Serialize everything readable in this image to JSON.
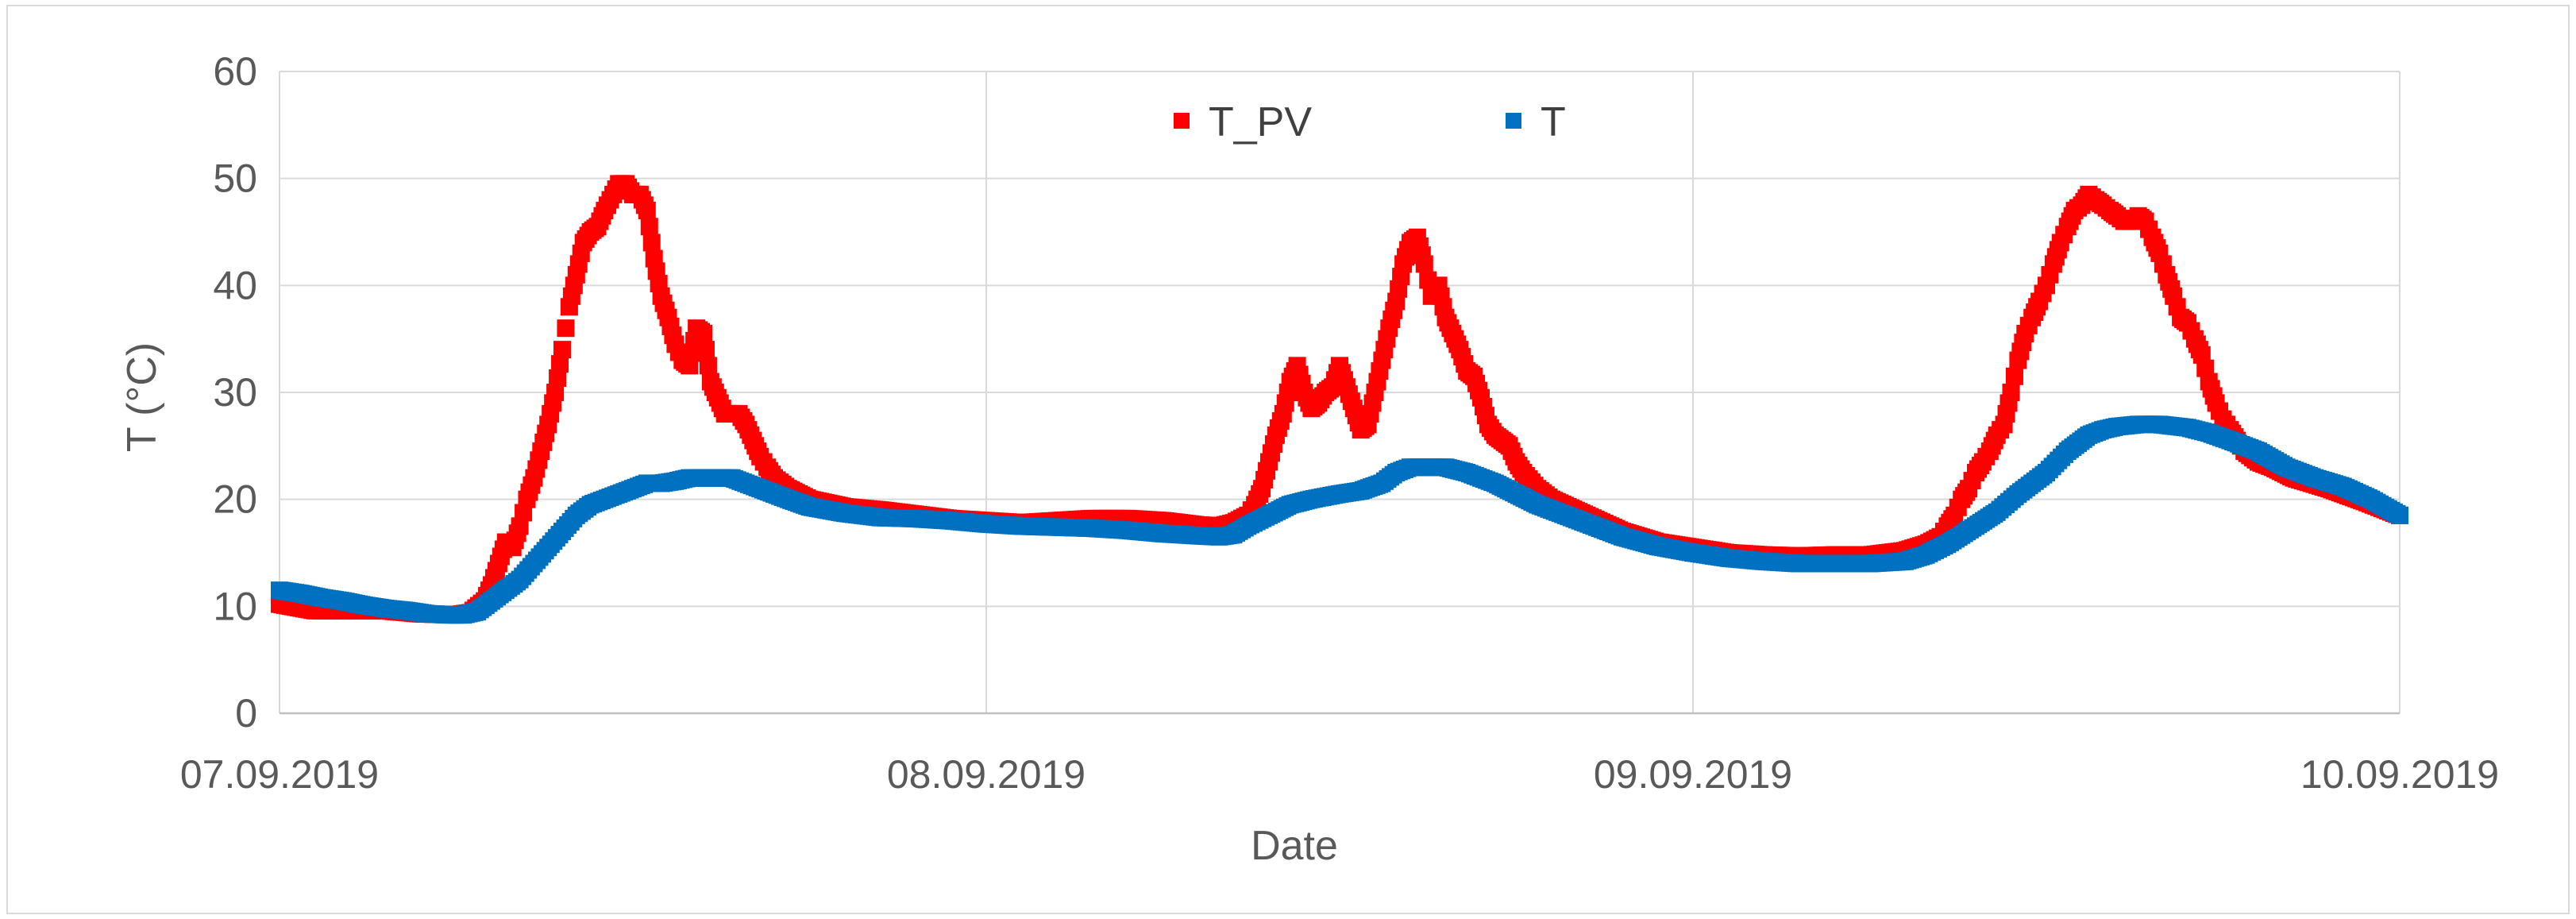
{
  "chart_data": {
    "type": "scatter",
    "title": "",
    "xlabel": "Date",
    "ylabel": "T (°C)",
    "x_unit": "days since 07.09.2019",
    "xlim": [
      0,
      3
    ],
    "ylim": [
      0,
      60
    ],
    "x_ticks": [
      {
        "value": 0,
        "label": "07.09.2019"
      },
      {
        "value": 1,
        "label": "08.09.2019"
      },
      {
        "value": 2,
        "label": "09.09.2019"
      },
      {
        "value": 3,
        "label": "10.09.2019"
      }
    ],
    "y_ticks": [
      {
        "value": 0,
        "label": "0"
      },
      {
        "value": 10,
        "label": "10"
      },
      {
        "value": 20,
        "label": "20"
      },
      {
        "value": 30,
        "label": "30"
      },
      {
        "value": 40,
        "label": "40"
      },
      {
        "value": 50,
        "label": "50"
      },
      {
        "value": 60,
        "label": "60"
      }
    ],
    "grid": true,
    "legend_position": "top-center",
    "series": [
      {
        "name": "T_PV",
        "color": "#ff0000",
        "marker": "square",
        "points": [
          [
            0,
            10.2
          ],
          [
            0.05,
            9.6
          ],
          [
            0.1,
            9.6
          ],
          [
            0.15,
            9.6
          ],
          [
            0.2,
            9.3
          ],
          [
            0.25,
            9.2
          ],
          [
            0.27,
            9.4
          ],
          [
            0.29,
            10.5
          ],
          [
            0.3,
            12
          ],
          [
            0.31,
            14
          ],
          [
            0.32,
            16
          ],
          [
            0.33,
            15.5
          ],
          [
            0.34,
            17.5
          ],
          [
            0.35,
            20
          ],
          [
            0.36,
            22
          ],
          [
            0.37,
            24.5
          ],
          [
            0.38,
            27
          ],
          [
            0.39,
            30
          ],
          [
            0.4,
            34
          ],
          [
            0.41,
            38
          ],
          [
            0.42,
            41
          ],
          [
            0.43,
            44
          ],
          [
            0.44,
            45
          ],
          [
            0.45,
            45.5
          ],
          [
            0.46,
            47
          ],
          [
            0.48,
            49.5
          ],
          [
            0.49,
            49.5
          ],
          [
            0.5,
            48.5
          ],
          [
            0.51,
            48.5
          ],
          [
            0.52,
            47
          ],
          [
            0.53,
            42.5
          ],
          [
            0.54,
            39
          ],
          [
            0.55,
            37
          ],
          [
            0.56,
            34.5
          ],
          [
            0.57,
            33
          ],
          [
            0.58,
            32.5
          ],
          [
            0.59,
            36
          ],
          [
            0.6,
            35.5
          ],
          [
            0.61,
            31
          ],
          [
            0.62,
            29.5
          ],
          [
            0.63,
            28
          ],
          [
            0.64,
            28
          ],
          [
            0.65,
            28
          ],
          [
            0.66,
            27
          ],
          [
            0.67,
            25.5
          ],
          [
            0.68,
            24
          ],
          [
            0.69,
            23
          ],
          [
            0.7,
            22
          ],
          [
            0.72,
            21
          ],
          [
            0.75,
            20
          ],
          [
            0.8,
            19.3
          ],
          [
            0.85,
            19
          ],
          [
            0.9,
            18.6
          ],
          [
            0.95,
            18.2
          ],
          [
            1.0,
            18
          ],
          [
            1.05,
            17.8
          ],
          [
            1.1,
            18
          ],
          [
            1.15,
            18.2
          ],
          [
            1.2,
            18.2
          ],
          [
            1.25,
            18
          ],
          [
            1.3,
            17.6
          ],
          [
            1.33,
            17.5
          ],
          [
            1.35,
            17.8
          ],
          [
            1.37,
            18.5
          ],
          [
            1.38,
            19.5
          ],
          [
            1.39,
            21
          ],
          [
            1.4,
            23.5
          ],
          [
            1.41,
            26
          ],
          [
            1.42,
            28
          ],
          [
            1.43,
            31
          ],
          [
            1.44,
            32.5
          ],
          [
            1.45,
            30
          ],
          [
            1.46,
            28.5
          ],
          [
            1.47,
            29
          ],
          [
            1.48,
            30
          ],
          [
            1.49,
            30.5
          ],
          [
            1.5,
            32.5
          ],
          [
            1.51,
            30.5
          ],
          [
            1.52,
            28.5
          ],
          [
            1.53,
            26.5
          ],
          [
            1.54,
            27
          ],
          [
            1.55,
            30
          ],
          [
            1.56,
            33
          ],
          [
            1.57,
            36
          ],
          [
            1.58,
            38.5
          ],
          [
            1.59,
            42
          ],
          [
            1.6,
            44
          ],
          [
            1.61,
            44.5
          ],
          [
            1.62,
            42
          ],
          [
            1.63,
            39
          ],
          [
            1.64,
            40
          ],
          [
            1.65,
            37
          ],
          [
            1.66,
            35.5
          ],
          [
            1.67,
            34
          ],
          [
            1.68,
            32
          ],
          [
            1.69,
            31.5
          ],
          [
            1.7,
            29.5
          ],
          [
            1.71,
            27
          ],
          [
            1.72,
            26
          ],
          [
            1.73,
            25.5
          ],
          [
            1.74,
            25
          ],
          [
            1.75,
            23.5
          ],
          [
            1.76,
            22.5
          ],
          [
            1.78,
            21
          ],
          [
            1.8,
            20
          ],
          [
            1.85,
            18.5
          ],
          [
            1.9,
            17
          ],
          [
            1.95,
            16
          ],
          [
            2.0,
            15.5
          ],
          [
            2.05,
            15
          ],
          [
            2.1,
            14.8
          ],
          [
            2.15,
            14.7
          ],
          [
            2.2,
            14.8
          ],
          [
            2.25,
            14.8
          ],
          [
            2.3,
            15.2
          ],
          [
            2.33,
            15.8
          ],
          [
            2.35,
            16.5
          ],
          [
            2.36,
            17.5
          ],
          [
            2.37,
            18.5
          ],
          [
            2.38,
            20
          ],
          [
            2.39,
            21
          ],
          [
            2.4,
            22.5
          ],
          [
            2.41,
            23.5
          ],
          [
            2.42,
            24.5
          ],
          [
            2.43,
            26
          ],
          [
            2.44,
            27
          ],
          [
            2.45,
            30
          ],
          [
            2.46,
            33
          ],
          [
            2.47,
            35.5
          ],
          [
            2.48,
            37
          ],
          [
            2.49,
            38.5
          ],
          [
            2.5,
            40
          ],
          [
            2.51,
            42
          ],
          [
            2.52,
            44
          ],
          [
            2.53,
            45.5
          ],
          [
            2.54,
            47
          ],
          [
            2.55,
            47.5
          ],
          [
            2.56,
            48.5
          ],
          [
            2.57,
            48
          ],
          [
            2.58,
            47.5
          ],
          [
            2.59,
            47
          ],
          [
            2.6,
            46.5
          ],
          [
            2.61,
            46
          ],
          [
            2.62,
            46
          ],
          [
            2.63,
            46.5
          ],
          [
            2.64,
            46
          ],
          [
            2.65,
            44.5
          ],
          [
            2.66,
            43
          ],
          [
            2.67,
            41
          ],
          [
            2.68,
            39
          ],
          [
            2.69,
            37
          ],
          [
            2.7,
            36.5
          ],
          [
            2.71,
            35
          ],
          [
            2.72,
            33.5
          ],
          [
            2.73,
            31
          ],
          [
            2.74,
            29
          ],
          [
            2.75,
            27.5
          ],
          [
            2.76,
            26.5
          ],
          [
            2.77,
            25.5
          ],
          [
            2.78,
            24.5
          ],
          [
            2.8,
            23.5
          ],
          [
            2.82,
            23
          ],
          [
            2.85,
            22
          ],
          [
            2.9,
            21
          ],
          [
            2.95,
            19.8
          ],
          [
            3.0,
            18.5
          ]
        ]
      },
      {
        "name": "T",
        "color": "#0070c0",
        "marker": "square",
        "points": [
          [
            0,
            11.5
          ],
          [
            0.03,
            11.2
          ],
          [
            0.06,
            10.8
          ],
          [
            0.09,
            10.5
          ],
          [
            0.12,
            10.1
          ],
          [
            0.15,
            9.8
          ],
          [
            0.18,
            9.6
          ],
          [
            0.21,
            9.3
          ],
          [
            0.24,
            9.2
          ],
          [
            0.26,
            9.2
          ],
          [
            0.28,
            9.5
          ],
          [
            0.3,
            10.5
          ],
          [
            0.32,
            11.5
          ],
          [
            0.34,
            12.5
          ],
          [
            0.36,
            14
          ],
          [
            0.38,
            15.5
          ],
          [
            0.4,
            17
          ],
          [
            0.42,
            18.5
          ],
          [
            0.44,
            19.5
          ],
          [
            0.46,
            20
          ],
          [
            0.48,
            20.5
          ],
          [
            0.5,
            21
          ],
          [
            0.52,
            21.5
          ],
          [
            0.54,
            21.5
          ],
          [
            0.56,
            21.7
          ],
          [
            0.58,
            22
          ],
          [
            0.6,
            22
          ],
          [
            0.62,
            22
          ],
          [
            0.64,
            22
          ],
          [
            0.66,
            21.5
          ],
          [
            0.68,
            21
          ],
          [
            0.7,
            20.5
          ],
          [
            0.72,
            20
          ],
          [
            0.75,
            19.3
          ],
          [
            0.8,
            18.7
          ],
          [
            0.85,
            18.3
          ],
          [
            0.9,
            18.2
          ],
          [
            0.95,
            18
          ],
          [
            1.0,
            17.7
          ],
          [
            1.05,
            17.5
          ],
          [
            1.1,
            17.4
          ],
          [
            1.15,
            17.3
          ],
          [
            1.2,
            17.1
          ],
          [
            1.25,
            16.8
          ],
          [
            1.3,
            16.6
          ],
          [
            1.33,
            16.5
          ],
          [
            1.35,
            16.7
          ],
          [
            1.37,
            17.5
          ],
          [
            1.4,
            18.5
          ],
          [
            1.43,
            19.5
          ],
          [
            1.46,
            20
          ],
          [
            1.5,
            20.5
          ],
          [
            1.53,
            20.8
          ],
          [
            1.56,
            21.5
          ],
          [
            1.58,
            22.5
          ],
          [
            1.6,
            23
          ],
          [
            1.62,
            23
          ],
          [
            1.65,
            23
          ],
          [
            1.68,
            22.5
          ],
          [
            1.7,
            22
          ],
          [
            1.72,
            21.5
          ],
          [
            1.75,
            20.5
          ],
          [
            1.78,
            19.5
          ],
          [
            1.82,
            18.5
          ],
          [
            1.86,
            17.5
          ],
          [
            1.9,
            16.5
          ],
          [
            1.95,
            15.6
          ],
          [
            2.0,
            15
          ],
          [
            2.05,
            14.5
          ],
          [
            2.1,
            14.2
          ],
          [
            2.15,
            14
          ],
          [
            2.2,
            14
          ],
          [
            2.25,
            14
          ],
          [
            2.3,
            14.2
          ],
          [
            2.33,
            14.8
          ],
          [
            2.36,
            15.8
          ],
          [
            2.4,
            17.5
          ],
          [
            2.43,
            18.8
          ],
          [
            2.46,
            20.5
          ],
          [
            2.5,
            22.5
          ],
          [
            2.53,
            24.5
          ],
          [
            2.56,
            26
          ],
          [
            2.58,
            26.5
          ],
          [
            2.6,
            26.8
          ],
          [
            2.63,
            27
          ],
          [
            2.66,
            27
          ],
          [
            2.7,
            26.7
          ],
          [
            2.73,
            26.2
          ],
          [
            2.76,
            25.5
          ],
          [
            2.8,
            24.5
          ],
          [
            2.84,
            23
          ],
          [
            2.88,
            22
          ],
          [
            2.92,
            21.2
          ],
          [
            2.96,
            20
          ],
          [
            3.0,
            18.5
          ]
        ]
      }
    ]
  }
}
